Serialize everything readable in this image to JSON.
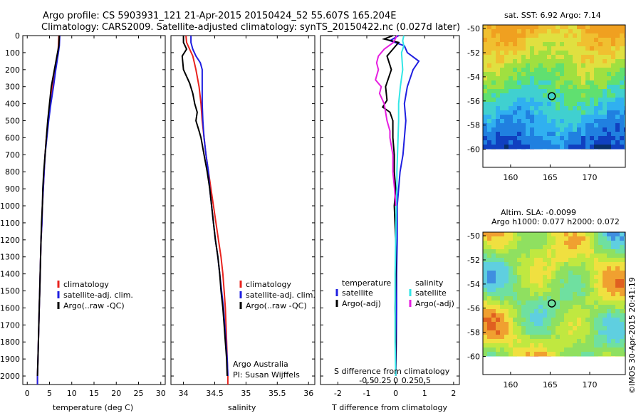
{
  "header": {
    "title_line1": "Argo profile: CS 5903931_121 21-Apr-2015 20150424_52 55.607S 165.204E",
    "title_line2": "Climatology: CARS2009. Satellite-adjusted climatology: synTS_20150422.nc (0.027d later)"
  },
  "colors": {
    "climatology": "#e8231e",
    "satellite": "#1f1fe0",
    "argo": "#000000",
    "sat_salinity": "#33e6e6",
    "argo_salinity_diff": "#e61fe0"
  },
  "depth_axis": {
    "ticks": [
      0,
      100,
      200,
      300,
      400,
      500,
      600,
      700,
      800,
      900,
      1000,
      1100,
      1200,
      1300,
      1400,
      1500,
      1600,
      1700,
      1800,
      1900,
      2000
    ],
    "ylim": [
      0,
      2050
    ]
  },
  "chart_data": [
    {
      "type": "line",
      "panel": "temperature",
      "xlabel": "temperature (deg C)",
      "xlim": [
        -1,
        31
      ],
      "xticks": [
        "0",
        "5",
        "10",
        "15",
        "20",
        "25",
        "30"
      ],
      "xtick_values": [
        0,
        5,
        10,
        15,
        20,
        25,
        30
      ],
      "legend": [
        "climatology",
        "satellite-adj. clim.",
        "Argo(..raw -QC)"
      ],
      "series": [
        {
          "name": "climatology",
          "color_key": "climatology",
          "depth": [
            0,
            60,
            100,
            200,
            300,
            400,
            500,
            600,
            700,
            800,
            900,
            1000,
            1100,
            1200,
            1300,
            1400,
            1500,
            1600,
            1700,
            1800,
            1900,
            2000,
            2050
          ],
          "values": [
            7.1,
            7.0,
            6.9,
            6.3,
            5.7,
            5.1,
            4.7,
            4.3,
            4.0,
            3.8,
            3.6,
            3.4,
            3.3,
            3.1,
            3.0,
            2.9,
            2.8,
            2.7,
            2.6,
            2.5,
            2.4,
            2.3,
            2.3
          ]
        },
        {
          "name": "satellite-adj. clim.",
          "color_key": "satellite",
          "depth": [
            0,
            60,
            100,
            200,
            300,
            400,
            500,
            600,
            700,
            800,
            900,
            1000,
            1100,
            1200,
            1300,
            1400,
            1500,
            1600,
            1700,
            1800,
            1900,
            2000,
            2050
          ],
          "values": [
            7.3,
            7.2,
            7.0,
            6.4,
            5.9,
            5.3,
            4.8,
            4.4,
            4.0,
            3.8,
            3.6,
            3.4,
            3.3,
            3.1,
            3.0,
            2.9,
            2.8,
            2.7,
            2.6,
            2.5,
            2.4,
            2.3,
            2.3
          ]
        },
        {
          "name": "Argo(..raw -QC)",
          "color_key": "argo",
          "depth": [
            0,
            60,
            100,
            200,
            300,
            400,
            500,
            600,
            700,
            800,
            900,
            1000,
            1100,
            1200,
            1300,
            1400,
            1500,
            1600,
            1700,
            1800,
            1900,
            2000
          ],
          "values": [
            7.2,
            7.1,
            6.8,
            6.1,
            5.4,
            5.0,
            4.6,
            4.3,
            4.0,
            3.7,
            3.5,
            3.4,
            3.2,
            3.1,
            3.0,
            2.9,
            2.8,
            2.7,
            2.6,
            2.5,
            2.4,
            2.3
          ]
        }
      ]
    },
    {
      "type": "line",
      "panel": "salinity",
      "xlabel": "salinity",
      "xlim": [
        33.8,
        36.1
      ],
      "xticks": [
        "34",
        "34.5",
        "35",
        "35.5",
        "36"
      ],
      "xtick_values": [
        34,
        34.5,
        35,
        35.5,
        36
      ],
      "legend": [
        "climatology",
        "satellite-adj. clim.",
        "Argo(..raw -QC)"
      ],
      "annotation_line1": "Argo Australia",
      "annotation_line2": "PI: Susan Wijffels",
      "series": [
        {
          "name": "climatology",
          "color_key": "climatology",
          "depth": [
            0,
            40,
            80,
            120,
            200,
            300,
            400,
            500,
            600,
            700,
            800,
            900,
            1000,
            1100,
            1200,
            1300,
            1400,
            1500,
            1600,
            1700,
            1800,
            1900,
            2000,
            2050
          ],
          "values": [
            34.04,
            34.05,
            34.1,
            34.15,
            34.2,
            34.25,
            34.28,
            34.3,
            34.33,
            34.36,
            34.4,
            34.44,
            34.48,
            34.52,
            34.56,
            34.6,
            34.63,
            34.65,
            34.67,
            34.68,
            34.69,
            34.7,
            34.71,
            34.71
          ]
        },
        {
          "name": "satellite-adj. clim.",
          "color_key": "satellite",
          "depth": [
            0,
            40,
            80,
            120,
            160,
            200,
            300,
            400,
            500,
            600,
            700,
            800,
            900,
            1000,
            1100,
            1200,
            1300,
            1400,
            1500,
            1600,
            1700,
            1800,
            1900,
            2000
          ],
          "values": [
            34.12,
            34.12,
            34.15,
            34.2,
            34.27,
            34.3,
            34.3,
            34.3,
            34.31,
            34.33,
            34.36,
            34.4,
            34.42,
            34.45,
            34.48,
            34.51,
            34.55,
            34.58,
            34.61,
            34.64,
            34.66,
            34.68,
            34.7,
            34.71
          ]
        },
        {
          "name": "Argo(..raw -QC)",
          "color_key": "argo",
          "depth": [
            0,
            40,
            80,
            120,
            200,
            280,
            340,
            400,
            450,
            500,
            560,
            600,
            700,
            800,
            900,
            1000,
            1100,
            1200,
            1300,
            1400,
            1500,
            1600,
            1700,
            1800,
            1900,
            2000
          ],
          "values": [
            34.0,
            34.0,
            34.05,
            33.98,
            34.0,
            34.1,
            34.15,
            34.18,
            34.22,
            34.2,
            34.25,
            34.28,
            34.33,
            34.38,
            34.42,
            34.45,
            34.48,
            34.51,
            34.55,
            34.58,
            34.6,
            34.63,
            34.65,
            34.67,
            34.69,
            34.7
          ]
        }
      ]
    },
    {
      "type": "line",
      "panel": "difference",
      "xlabel_top": "S difference from climatology",
      "xlabel": "T difference from climatology",
      "xlim": [
        -2.6,
        2.2
      ],
      "s_ticks": [
        "-0.5",
        "-0.25",
        "0",
        "0.25",
        "0.5"
      ],
      "s_tick_values": [
        -0.5,
        -0.25,
        0,
        0.25,
        0.5
      ],
      "t_ticks": [
        "-2",
        "-1",
        "0",
        "1",
        "2"
      ],
      "t_tick_values": [
        -2,
        -1,
        0,
        1,
        2
      ],
      "legend_temperature_title": "temperature",
      "legend_salinity_title": "salinity",
      "legend_temperature": [
        "satellite",
        "Argo(-adj)"
      ],
      "legend_salinity": [
        "satellite",
        "Argo(-adj)"
      ],
      "series": [
        {
          "name": "temperature satellite",
          "color_key": "satellite",
          "depth": [
            0,
            30,
            60,
            100,
            150,
            200,
            300,
            400,
            500,
            600,
            700,
            800,
            900,
            1000,
            1200,
            1400,
            1600,
            1800,
            2000
          ],
          "values": [
            0.1,
            -0.2,
            0.3,
            0.4,
            0.8,
            0.6,
            0.4,
            0.3,
            0.35,
            0.3,
            0.25,
            0.15,
            0.1,
            0.05,
            0.05,
            0.03,
            0.03,
            0.02,
            0.0
          ]
        },
        {
          "name": "temperature Argo(-adj)",
          "color_key": "argo",
          "depth": [
            0,
            20,
            40,
            80,
            120,
            200,
            300,
            380,
            420,
            450,
            500,
            600,
            700,
            800,
            900,
            1000,
            1200,
            1400,
            1600,
            1800,
            2000
          ],
          "values": [
            -0.1,
            -0.4,
            0.1,
            -0.1,
            -0.3,
            -0.15,
            -0.35,
            -0.3,
            -0.45,
            -0.2,
            -0.1,
            -0.1,
            -0.05,
            -0.05,
            0.0,
            -0.05,
            0.0,
            0.0,
            -0.02,
            0.0,
            0.0
          ]
        },
        {
          "name": "salinity satellite",
          "color_key": "sat_salinity",
          "depth": [
            0,
            30,
            60,
            100,
            200,
            300,
            400,
            500,
            600,
            700,
            800,
            900,
            1000,
            1200,
            1400,
            1600,
            1800,
            2000
          ],
          "values": [
            0.14,
            0.12,
            0.14,
            0.1,
            0.12,
            0.08,
            0.05,
            0.05,
            0.04,
            0.03,
            0.02,
            0.02,
            0.01,
            0.0,
            -0.01,
            -0.01,
            -0.01,
            0.0
          ]
        },
        {
          "name": "salinity Argo(-adj)",
          "color_key": "argo_salinity_diff",
          "depth": [
            0,
            40,
            80,
            120,
            160,
            200,
            260,
            300,
            340,
            400,
            440,
            500,
            560,
            600,
            700,
            800,
            900,
            1000
          ],
          "values": [
            0.02,
            -0.04,
            -0.2,
            -0.3,
            -0.33,
            -0.3,
            -0.35,
            -0.25,
            -0.28,
            -0.2,
            -0.18,
            -0.15,
            -0.1,
            -0.1,
            -0.05,
            -0.05,
            -0.02,
            0.0
          ]
        }
      ]
    },
    {
      "type": "heatmap",
      "panel": "sst_map",
      "title": "sat. SST: 6.92  Argo: 7.14",
      "xlim": [
        156.5,
        174.5
      ],
      "ylim": [
        -61.5,
        -49.7
      ],
      "xticks": [
        "160",
        "165",
        "170"
      ],
      "xtick_values": [
        160,
        165,
        170
      ],
      "yticks": [
        "-50",
        "-52",
        "-54",
        "-56",
        "-58",
        "-60"
      ],
      "ytick_values": [
        -50,
        -52,
        -54,
        -56,
        -58,
        -60
      ],
      "data_extent_lat": [
        -60,
        -49.7
      ],
      "argo_position": [
        165.204,
        -55.607
      ]
    },
    {
      "type": "heatmap",
      "panel": "sla_map",
      "title_line1": "Altim. SLA: -0.0099",
      "title_line2": "Argo h1000: 0.077  h2000: 0.072",
      "xlim": [
        156.5,
        174.5
      ],
      "ylim": [
        -61.5,
        -49.7
      ],
      "xticks": [
        "160",
        "165",
        "170"
      ],
      "xtick_values": [
        160,
        165,
        170
      ],
      "yticks": [
        "-50",
        "-52",
        "-54",
        "-56",
        "-58",
        "-60"
      ],
      "ytick_values": [
        -50,
        -52,
        -54,
        -56,
        -58,
        -60
      ],
      "data_extent_lat": [
        -60,
        -49.7
      ],
      "argo_position": [
        165.204,
        -55.607
      ]
    }
  ],
  "credit": "©IMOS 30-Apr-2015 20:41:19"
}
